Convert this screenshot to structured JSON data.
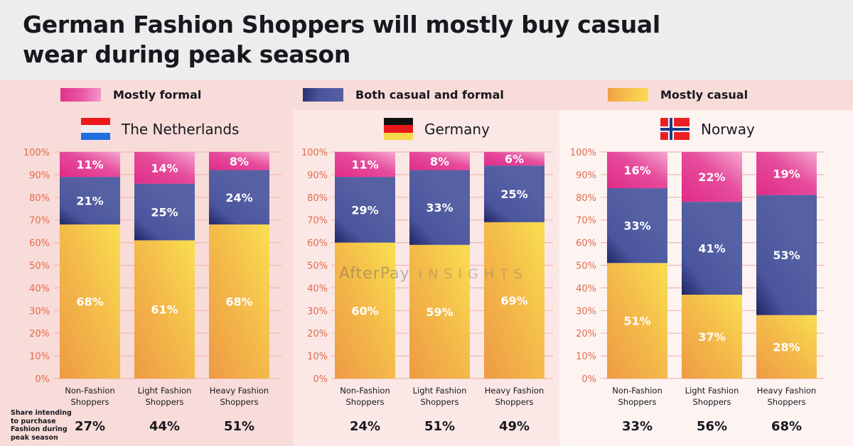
{
  "title": "German Fashion Shoppers will mostly buy casual wear during peak season",
  "watermark": {
    "brand": "AfterPay",
    "suffix": "INSIGHTS"
  },
  "share_row_title": "Share intending to purchase Fashion during peak season",
  "legend": [
    {
      "label": "Mostly formal",
      "color": "#e3368f"
    },
    {
      "label": "Both casual and formal",
      "color": "#525da2"
    },
    {
      "label": "Mostly casual",
      "color": "#f4b648"
    }
  ],
  "countries": [
    {
      "name": "The Netherlands",
      "flag": "netherlands-flag-icon"
    },
    {
      "name": "Germany",
      "flag": "germany-flag-icon"
    },
    {
      "name": "Norway",
      "flag": "norway-flag-icon"
    }
  ],
  "chart_data": {
    "type": "bar",
    "stacked": true,
    "title": "German Fashion Shoppers will mostly buy casual wear during peak season",
    "categories": [
      "Non-Fashion Shoppers",
      "Light Fashion Shoppers",
      "Heavy Fashion Shoppers"
    ],
    "category_lines": [
      [
        "Non-Fashion",
        "Shoppers"
      ],
      [
        "Light Fashion",
        "Shoppers"
      ],
      [
        "Heavy Fashion",
        "Shoppers"
      ]
    ],
    "yticks": [
      "0%",
      "10%",
      "20%",
      "30%",
      "40%",
      "50%",
      "60%",
      "70%",
      "80%",
      "90%",
      "100%"
    ],
    "ylim": [
      0,
      100
    ],
    "grid": true,
    "legend_position": "top",
    "panels": [
      {
        "country": "The Netherlands",
        "series": [
          {
            "name": "Mostly casual",
            "values": [
              68,
              61,
              68
            ]
          },
          {
            "name": "Both casual and formal",
            "values": [
              21,
              25,
              24
            ]
          },
          {
            "name": "Mostly formal",
            "values": [
              11,
              14,
              8
            ]
          }
        ],
        "share_intending": [
          "27%",
          "44%",
          "51%"
        ]
      },
      {
        "country": "Germany",
        "series": [
          {
            "name": "Mostly casual",
            "values": [
              60,
              59,
              69
            ]
          },
          {
            "name": "Both casual and formal",
            "values": [
              29,
              33,
              25
            ]
          },
          {
            "name": "Mostly formal",
            "values": [
              11,
              8,
              6
            ]
          }
        ],
        "share_intending": [
          "24%",
          "51%",
          "49%"
        ]
      },
      {
        "country": "Norway",
        "series": [
          {
            "name": "Mostly casual",
            "values": [
              51,
              37,
              28
            ]
          },
          {
            "name": "Both casual and formal",
            "values": [
              33,
              41,
              53
            ]
          },
          {
            "name": "Mostly formal",
            "values": [
              16,
              22,
              19
            ]
          }
        ],
        "share_intending": [
          "33%",
          "56%",
          "68%"
        ]
      }
    ]
  }
}
